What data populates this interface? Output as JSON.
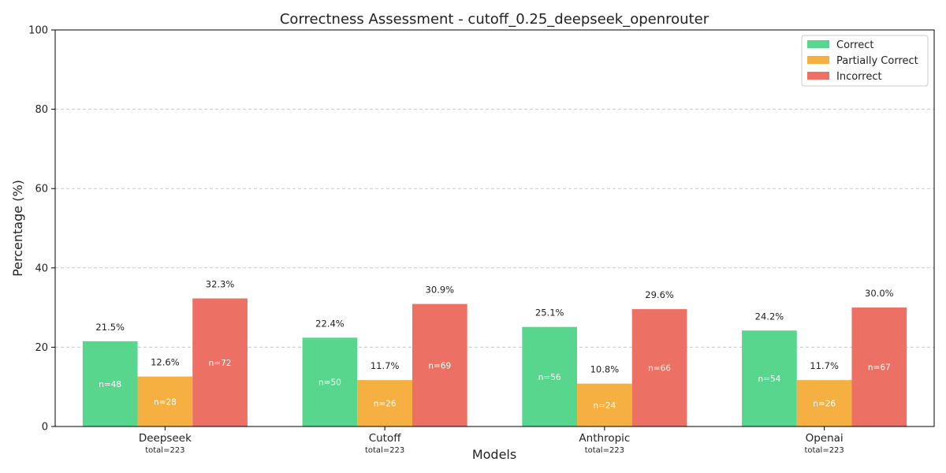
{
  "chart_data": {
    "type": "bar",
    "title": "Correctness Assessment - cutoff_0.25_deepseek_openrouter",
    "xlabel": "Models",
    "ylabel": "Percentage (%)",
    "ylim": [
      0,
      100
    ],
    "yticks": [
      0,
      20,
      40,
      60,
      80,
      100
    ],
    "grid": true,
    "legend_position": "top-right",
    "categories": [
      "Deepseek",
      "Cutoff",
      "Anthropic",
      "Openai"
    ],
    "category_totals": [
      "total=223",
      "total=223",
      "total=223",
      "total=223"
    ],
    "series": [
      {
        "name": "Correct",
        "color": "#58d68d",
        "values": [
          21.5,
          22.4,
          25.1,
          24.2
        ],
        "value_labels": [
          "21.5%",
          "22.4%",
          "25.1%",
          "24.2%"
        ],
        "counts": [
          "n=48",
          "n=50",
          "n=56",
          "n=54"
        ]
      },
      {
        "name": "Partially Correct",
        "color": "#f5b041",
        "values": [
          12.6,
          11.7,
          10.8,
          11.7
        ],
        "value_labels": [
          "12.6%",
          "11.7%",
          "10.8%",
          "11.7%"
        ],
        "counts": [
          "n=28",
          "n=26",
          "n=24",
          "n=26"
        ]
      },
      {
        "name": "Incorrect",
        "color": "#ec7063",
        "values": [
          32.3,
          30.9,
          29.6,
          30.0
        ],
        "value_labels": [
          "32.3%",
          "30.9%",
          "29.6%",
          "30.0%"
        ],
        "counts": [
          "n=72",
          "n=69",
          "n=66",
          "n=67"
        ]
      }
    ]
  }
}
